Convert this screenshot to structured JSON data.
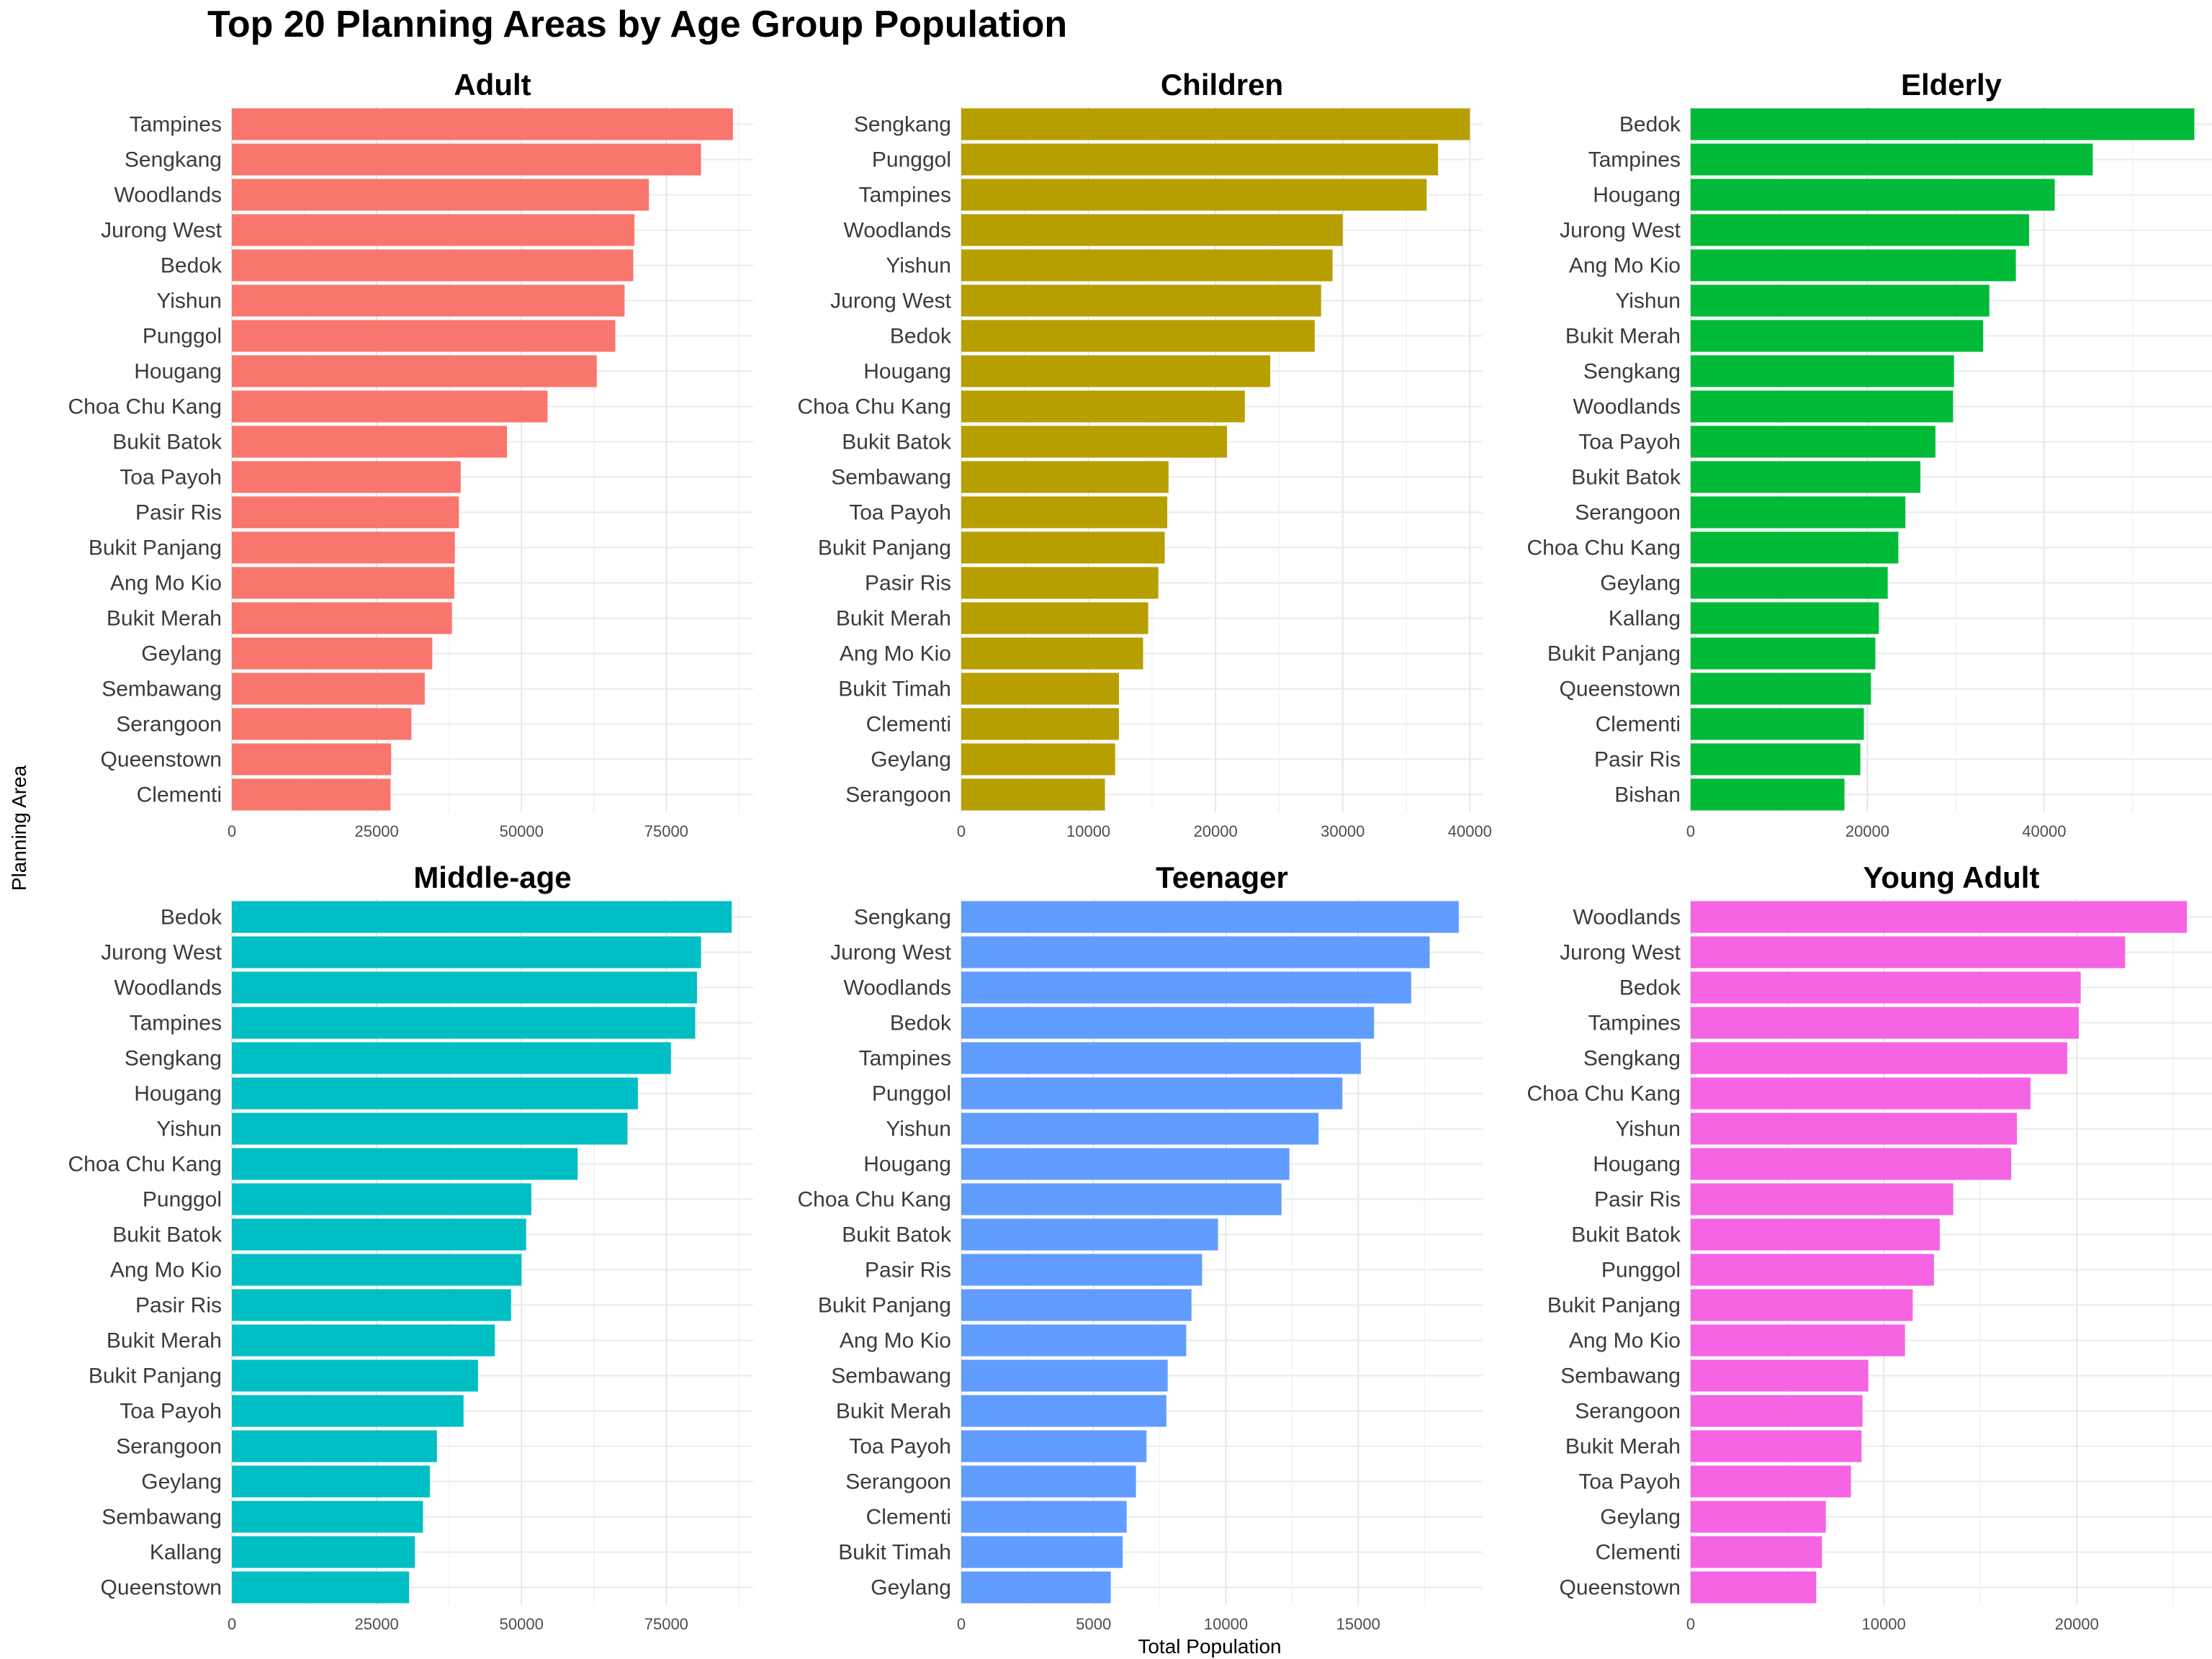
{
  "title": "Top 20 Planning Areas by Age Group Population",
  "xlabel": "Total Population",
  "ylabel": "Planning Area",
  "chart_data": [
    {
      "type": "bar",
      "orientation": "horizontal",
      "title": "Adult",
      "color": "#F8766D",
      "xlim": [
        0,
        90000
      ],
      "ticks": [
        0,
        25000,
        50000,
        75000
      ],
      "categories": [
        "Tampines",
        "Sengkang",
        "Woodlands",
        "Jurong West",
        "Bedok",
        "Yishun",
        "Punggol",
        "Hougang",
        "Choa Chu Kang",
        "Bukit Batok",
        "Toa Payoh",
        "Pasir Ris",
        "Bukit Panjang",
        "Ang Mo Kio",
        "Bukit Merah",
        "Geylang",
        "Sembawang",
        "Serangoon",
        "Queenstown",
        "Clementi"
      ],
      "values": [
        86500,
        81000,
        72000,
        69500,
        69300,
        67800,
        66200,
        63000,
        54500,
        47500,
        39500,
        39200,
        38500,
        38400,
        38000,
        34600,
        33300,
        31000,
        27500,
        27400
      ]
    },
    {
      "type": "bar",
      "orientation": "horizontal",
      "title": "Children",
      "color": "#B79F00",
      "xlim": [
        0,
        41000
      ],
      "ticks": [
        0,
        10000,
        20000,
        30000,
        40000
      ],
      "categories": [
        "Sengkang",
        "Punggol",
        "Tampines",
        "Woodlands",
        "Yishun",
        "Jurong West",
        "Bedok",
        "Hougang",
        "Choa Chu Kang",
        "Bukit Batok",
        "Sembawang",
        "Toa Payoh",
        "Bukit Panjang",
        "Pasir Ris",
        "Bukit Merah",
        "Ang Mo Kio",
        "Bukit Timah",
        "Clementi",
        "Geylang",
        "Serangoon"
      ],
      "values": [
        40000,
        37500,
        36600,
        30000,
        29200,
        28300,
        27800,
        24300,
        22300,
        20900,
        16300,
        16200,
        16000,
        15500,
        14700,
        14300,
        12400,
        12400,
        12100,
        11300
      ]
    },
    {
      "type": "bar",
      "orientation": "horizontal",
      "title": "Elderly",
      "color": "#00BA38",
      "xlim": [
        0,
        59000
      ],
      "ticks": [
        0,
        20000,
        40000
      ],
      "categories": [
        "Bedok",
        "Tampines",
        "Hougang",
        "Jurong West",
        "Ang Mo Kio",
        "Yishun",
        "Bukit Merah",
        "Sengkang",
        "Woodlands",
        "Toa Payoh",
        "Bukit Batok",
        "Serangoon",
        "Choa Chu Kang",
        "Geylang",
        "Kallang",
        "Bukit Panjang",
        "Queenstown",
        "Clementi",
        "Pasir Ris",
        "Bishan"
      ],
      "values": [
        57000,
        45500,
        41200,
        38300,
        36800,
        33800,
        33100,
        29800,
        29700,
        27700,
        26000,
        24300,
        23500,
        22300,
        21300,
        20900,
        20400,
        19600,
        19200,
        17400
      ]
    },
    {
      "type": "bar",
      "orientation": "horizontal",
      "title": "Middle-age",
      "color": "#00BFC4",
      "xlim": [
        0,
        90000
      ],
      "ticks": [
        0,
        25000,
        50000,
        75000
      ],
      "categories": [
        "Bedok",
        "Jurong West",
        "Woodlands",
        "Tampines",
        "Sengkang",
        "Hougang",
        "Yishun",
        "Choa Chu Kang",
        "Punggol",
        "Bukit Batok",
        "Ang Mo Kio",
        "Pasir Ris",
        "Bukit Merah",
        "Bukit Panjang",
        "Toa Payoh",
        "Serangoon",
        "Geylang",
        "Sembawang",
        "Kallang",
        "Queenstown"
      ],
      "values": [
        86300,
        81000,
        80300,
        80000,
        75800,
        70100,
        68300,
        59700,
        51700,
        50800,
        50000,
        48200,
        45400,
        42500,
        40000,
        35400,
        34200,
        33000,
        31600,
        30600
      ]
    },
    {
      "type": "bar",
      "orientation": "horizontal",
      "title": "Teenager",
      "color": "#619CFF",
      "xlim": [
        0,
        19700
      ],
      "ticks": [
        0,
        5000,
        10000,
        15000
      ],
      "categories": [
        "Sengkang",
        "Jurong West",
        "Woodlands",
        "Bedok",
        "Tampines",
        "Punggol",
        "Yishun",
        "Hougang",
        "Choa Chu Kang",
        "Bukit Batok",
        "Pasir Ris",
        "Bukit Panjang",
        "Ang Mo Kio",
        "Sembawang",
        "Bukit Merah",
        "Toa Payoh",
        "Serangoon",
        "Clementi",
        "Bukit Timah",
        "Geylang"
      ],
      "values": [
        18800,
        17700,
        17000,
        15600,
        15100,
        14400,
        13500,
        12400,
        12100,
        9700,
        9100,
        8700,
        8500,
        7800,
        7750,
        7000,
        6600,
        6250,
        6100,
        5650
      ]
    },
    {
      "type": "bar",
      "orientation": "horizontal",
      "title": "Young Adult",
      "color": "#F564E3",
      "xlim": [
        0,
        27000
      ],
      "ticks": [
        0,
        10000,
        20000
      ],
      "categories": [
        "Woodlands",
        "Jurong West",
        "Bedok",
        "Tampines",
        "Sengkang",
        "Choa Chu Kang",
        "Yishun",
        "Hougang",
        "Pasir Ris",
        "Bukit Batok",
        "Punggol",
        "Bukit Panjang",
        "Ang Mo Kio",
        "Sembawang",
        "Serangoon",
        "Bukit Merah",
        "Toa Payoh",
        "Geylang",
        "Clementi",
        "Queenstown"
      ],
      "values": [
        25700,
        22500,
        20200,
        20100,
        19500,
        17600,
        16900,
        16600,
        13600,
        12900,
        12600,
        11500,
        11100,
        9200,
        8900,
        8850,
        8300,
        7000,
        6800,
        6500
      ]
    }
  ]
}
